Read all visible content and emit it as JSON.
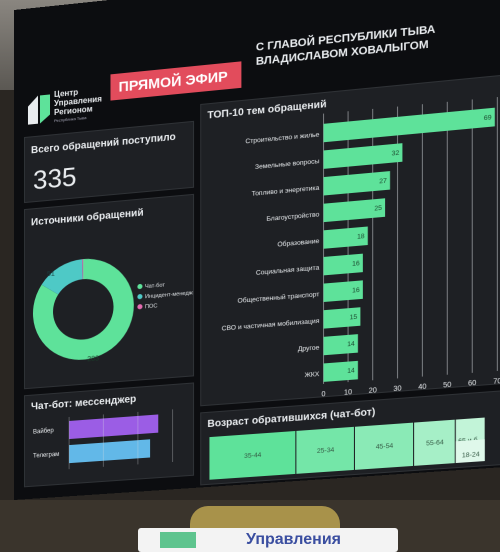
{
  "header": {
    "live_badge": "ПРЯМОЙ ЭФИР",
    "headline_line1": "С ГЛАВОЙ РЕСПУБЛИКИ ТЫВА",
    "headline_line2": "ВЛАДИСЛАВОМ ХОВАЛЫГОМ",
    "logo_line1": "Центр",
    "logo_line2": "Управления",
    "logo_line3": "Регионом",
    "logo_sub": "Республика Тыва"
  },
  "total": {
    "title": "Всего обращений поступило",
    "value": "335"
  },
  "sources": {
    "title": "Источники обращений",
    "legend": [
      "Чат-бот",
      "Инцидент-менеджмент",
      "ПОС"
    ],
    "colors": [
      "#5ee29a",
      "#4ec9c6",
      "#e36bb0"
    ],
    "slice_labels": [
      "283",
      "51",
      ""
    ]
  },
  "top10": {
    "title": "ТОП-10 тем обращений"
  },
  "messenger": {
    "title": "Чат-бот: мессенджер",
    "labels": [
      "Вайбер",
      "Телеграм"
    ]
  },
  "age": {
    "title": "Возраст обратившихся (чат-бот)"
  },
  "sign": {
    "text": "Управления"
  },
  "colors": {
    "bar": "#5ee29a",
    "viber": "#9b5de5",
    "telegram": "#62b8e8",
    "live": "#e24c5c"
  },
  "chart_data": [
    {
      "type": "bar",
      "orientation": "horizontal",
      "title": "ТОП-10 тем обращений",
      "categories": [
        "Строительство и жилье",
        "Земельные вопросы",
        "Топливо и энергетика",
        "Благоустройство",
        "Образование",
        "Социальная защита",
        "Общественный транспорт",
        "СВО и частичная мобилизация",
        "Другое",
        "ЖКХ"
      ],
      "values": [
        69,
        32,
        27,
        25,
        18,
        16,
        16,
        15,
        14,
        14
      ],
      "xlim": [
        0,
        70
      ],
      "xticks": [
        0,
        10,
        20,
        30,
        40,
        50,
        60,
        70
      ],
      "grid": true
    },
    {
      "type": "pie",
      "title": "Источники обращений",
      "categories": [
        "Чат-бот",
        "Инцидент-менеджмент",
        "ПОС"
      ],
      "values": [
        283,
        51,
        1
      ],
      "legend": "right"
    },
    {
      "type": "bar",
      "orientation": "horizontal",
      "title": "Чат-бот: мессенджер",
      "categories": [
        "Вайбер",
        "Телеграм"
      ],
      "values": [
        0.55,
        0.5
      ]
    },
    {
      "type": "heatmap",
      "title": "Возраст обратившихся (чат-бот)",
      "categories": [
        "35-44",
        "25-34",
        "45-54",
        "55-64",
        "65 и б...",
        "18-24"
      ],
      "values": [
        0.3,
        0.2,
        0.2,
        0.14,
        0.1,
        0.06
      ]
    }
  ]
}
